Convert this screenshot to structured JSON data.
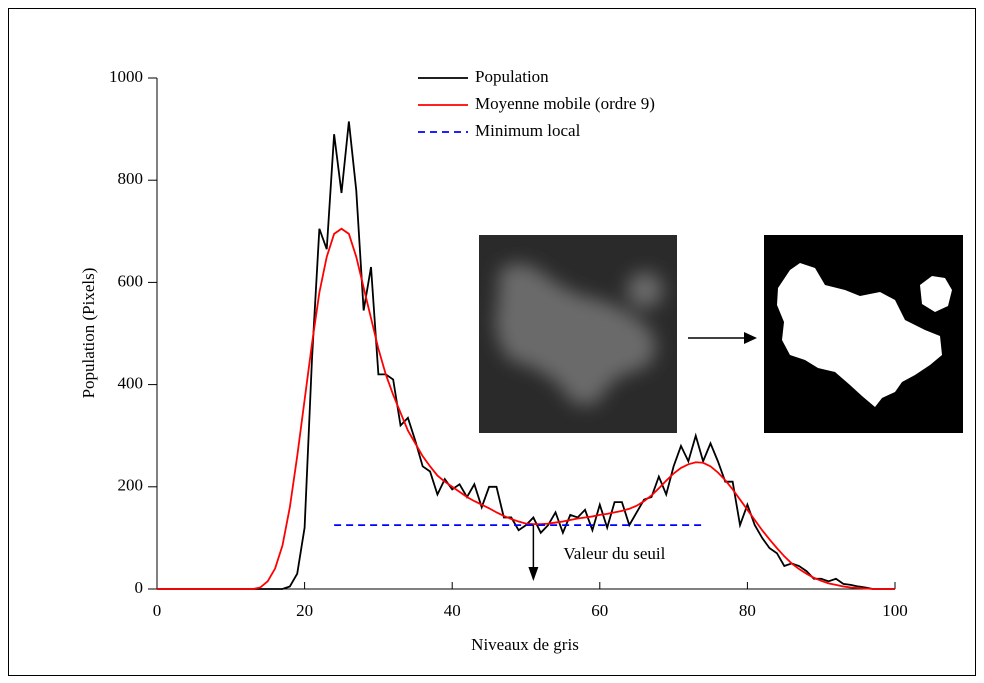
{
  "chart_data": {
    "type": "line",
    "x_label": "Niveaux de gris",
    "y_label": "Population (Pixels)",
    "xlim": [
      0,
      100
    ],
    "xticks": [
      0,
      20,
      40,
      60,
      80,
      100
    ],
    "ylim": [
      0,
      1000
    ],
    "yticks": [
      0,
      200,
      400,
      600,
      800,
      1000
    ],
    "x": [
      0,
      1,
      2,
      3,
      4,
      5,
      6,
      7,
      8,
      9,
      10,
      11,
      12,
      13,
      14,
      15,
      16,
      17,
      18,
      19,
      20,
      21,
      22,
      23,
      24,
      25,
      26,
      27,
      28,
      29,
      30,
      31,
      32,
      33,
      34,
      35,
      36,
      37,
      38,
      39,
      40,
      41,
      42,
      43,
      44,
      45,
      46,
      47,
      48,
      49,
      50,
      51,
      52,
      53,
      54,
      55,
      56,
      57,
      58,
      59,
      60,
      61,
      62,
      63,
      64,
      65,
      66,
      67,
      68,
      69,
      70,
      71,
      72,
      73,
      74,
      75,
      76,
      77,
      78,
      79,
      80,
      81,
      82,
      83,
      84,
      85,
      86,
      87,
      88,
      89,
      90,
      91,
      92,
      93,
      94,
      95,
      96,
      97,
      98,
      99,
      100
    ],
    "series": [
      {
        "name": "Population",
        "color": "#000000",
        "values": [
          0,
          0,
          0,
          0,
          0,
          0,
          0,
          0,
          0,
          0,
          0,
          0,
          0,
          0,
          0,
          0,
          0,
          0,
          5,
          30,
          120,
          450,
          705,
          665,
          890,
          775,
          915,
          780,
          545,
          630,
          420,
          420,
          410,
          320,
          335,
          290,
          240,
          230,
          185,
          215,
          195,
          205,
          180,
          205,
          160,
          200,
          200,
          140,
          140,
          115,
          125,
          140,
          110,
          125,
          150,
          110,
          145,
          140,
          155,
          115,
          165,
          120,
          170,
          170,
          125,
          150,
          175,
          180,
          220,
          185,
          240,
          280,
          250,
          300,
          250,
          285,
          250,
          210,
          210,
          125,
          165,
          125,
          100,
          80,
          70,
          45,
          50,
          45,
          35,
          20,
          20,
          15,
          20,
          10,
          8,
          5,
          3,
          0,
          0,
          0,
          0
        ]
      },
      {
        "name": "Moyenne mobile (ordre 9)",
        "color": "#ff0000",
        "values": [
          0,
          0,
          0,
          0,
          0,
          0,
          0,
          0,
          0,
          0,
          0,
          0,
          0,
          0,
          3,
          15,
          40,
          85,
          160,
          260,
          370,
          480,
          580,
          650,
          695,
          705,
          695,
          650,
          590,
          530,
          470,
          420,
          380,
          345,
          310,
          285,
          260,
          240,
          222,
          210,
          200,
          190,
          180,
          172,
          165,
          158,
          150,
          143,
          137,
          132,
          128,
          127,
          127,
          128,
          130,
          132,
          135,
          138,
          140,
          142,
          145,
          147,
          150,
          153,
          157,
          163,
          172,
          183,
          197,
          212,
          226,
          237,
          244,
          248,
          247,
          240,
          228,
          213,
          195,
          175,
          155,
          135,
          115,
          97,
          80,
          64,
          50,
          39,
          30,
          22,
          16,
          11,
          8,
          5,
          3,
          2,
          1,
          0,
          0,
          0,
          0
        ]
      },
      {
        "name": "Minimum local",
        "color": "#0000ff",
        "dashed": true,
        "x": [
          24,
          74
        ],
        "values": [
          125,
          125
        ]
      }
    ],
    "annotation": {
      "text": "Valeur du seuil",
      "x": 51
    }
  }
}
